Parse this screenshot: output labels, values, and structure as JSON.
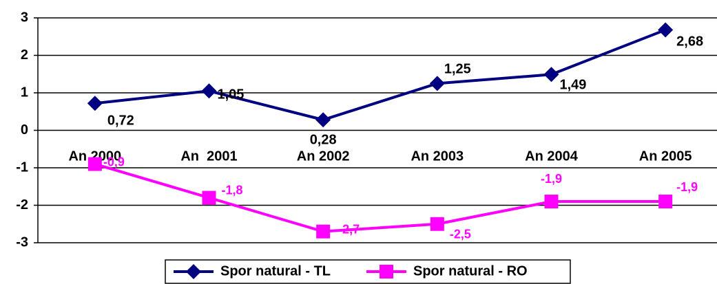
{
  "chart_data": {
    "type": "line",
    "categories": [
      "An 2000",
      "An  2001",
      "An 2002",
      "An 2003",
      "An 2004",
      "An 2005"
    ],
    "series": [
      {
        "name": "Spor natural - TL",
        "color": "#000080",
        "marker": "diamond",
        "values": [
          0.72,
          1.05,
          0.28,
          1.25,
          1.49,
          2.68
        ],
        "value_labels": [
          "0,72",
          "1,05",
          "0,28",
          "1,25",
          "1,49",
          "2,68"
        ]
      },
      {
        "name": "Spor natural - RO",
        "color": "#ff00ff",
        "marker": "square",
        "values": [
          -0.9,
          -1.8,
          -2.7,
          -2.5,
          -1.9,
          -1.9
        ],
        "value_labels": [
          "-0,9",
          "-1,8",
          "-2,7",
          "-2,5",
          "-1,9",
          "-1,9"
        ]
      }
    ],
    "ylim": [
      -3,
      3
    ],
    "yticks": [
      -3,
      -2,
      -1,
      0,
      1,
      2,
      3
    ],
    "grid": true,
    "legend": "bottom"
  }
}
